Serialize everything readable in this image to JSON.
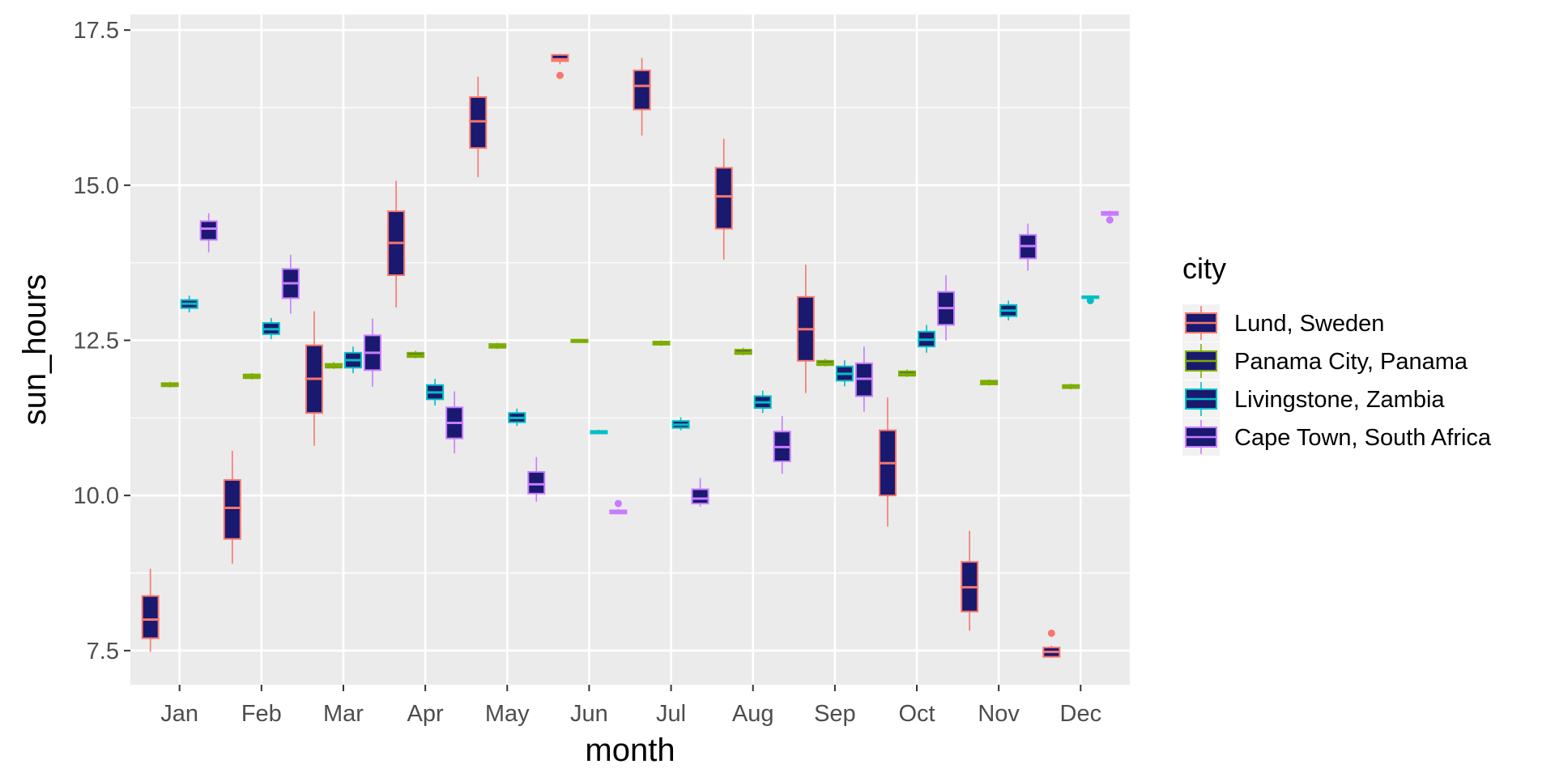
{
  "chart_data": {
    "type": "boxplot",
    "title": "",
    "xlabel": "month",
    "ylabel": "sun_hours",
    "ylim": [
      6.95,
      17.75
    ],
    "yticks": [
      7.5,
      10.0,
      12.5,
      15.0,
      17.5
    ],
    "ytick_labels": [
      "7.5",
      "10.0",
      "12.5",
      "15.0",
      "17.5"
    ],
    "categories": [
      "Jan",
      "Feb",
      "Mar",
      "Apr",
      "May",
      "Jun",
      "Jul",
      "Aug",
      "Sep",
      "Oct",
      "Nov",
      "Dec"
    ],
    "box_fill": "#191970",
    "panel_background": "#EBEBEB",
    "grid_color": "#FFFFFF",
    "legend": {
      "title": "city",
      "position": "right"
    },
    "series": [
      {
        "name": "Lund, Sweden",
        "color": "#F8766D",
        "boxes": [
          {
            "min": 7.48,
            "q1": 7.7,
            "median": 8.0,
            "q3": 8.38,
            "max": 8.82,
            "outliers": []
          },
          {
            "min": 8.9,
            "q1": 9.3,
            "median": 9.8,
            "q3": 10.25,
            "max": 10.72,
            "outliers": []
          },
          {
            "min": 10.8,
            "q1": 11.33,
            "median": 11.88,
            "q3": 12.42,
            "max": 12.97,
            "outliers": []
          },
          {
            "min": 13.03,
            "q1": 13.55,
            "median": 14.07,
            "q3": 14.58,
            "max": 15.07,
            "outliers": []
          },
          {
            "min": 15.13,
            "q1": 15.6,
            "median": 16.03,
            "q3": 16.42,
            "max": 16.75,
            "outliers": []
          },
          {
            "min": 16.95,
            "q1": 17.0,
            "median": 17.03,
            "q3": 17.1,
            "max": 17.12,
            "outliers": [
              16.77
            ]
          },
          {
            "min": 15.8,
            "q1": 16.22,
            "median": 16.6,
            "q3": 16.85,
            "max": 17.05,
            "outliers": []
          },
          {
            "min": 13.8,
            "q1": 14.3,
            "median": 14.82,
            "q3": 15.28,
            "max": 15.75,
            "outliers": []
          },
          {
            "min": 11.65,
            "q1": 12.17,
            "median": 12.68,
            "q3": 13.2,
            "max": 13.72,
            "outliers": []
          },
          {
            "min": 9.5,
            "q1": 10.0,
            "median": 10.52,
            "q3": 11.05,
            "max": 11.58,
            "outliers": []
          },
          {
            "min": 7.82,
            "q1": 8.13,
            "median": 8.52,
            "q3": 8.93,
            "max": 9.43,
            "outliers": []
          },
          {
            "min": 7.38,
            "q1": 7.4,
            "median": 7.48,
            "q3": 7.55,
            "max": 7.58,
            "outliers": [
              7.78
            ]
          }
        ]
      },
      {
        "name": "Panama City, Panama",
        "color": "#7CAE00",
        "boxes": [
          {
            "min": 11.74,
            "q1": 11.76,
            "median": 11.78,
            "q3": 11.81,
            "max": 11.83,
            "outliers": []
          },
          {
            "min": 11.87,
            "q1": 11.89,
            "median": 11.92,
            "q3": 11.95,
            "max": 11.97,
            "outliers": []
          },
          {
            "min": 12.04,
            "q1": 12.06,
            "median": 12.09,
            "q3": 12.12,
            "max": 12.15,
            "outliers": []
          },
          {
            "min": 12.21,
            "q1": 12.23,
            "median": 12.26,
            "q3": 12.3,
            "max": 12.33,
            "outliers": []
          },
          {
            "min": 12.36,
            "q1": 12.38,
            "median": 12.41,
            "q3": 12.44,
            "max": 12.46,
            "outliers": []
          },
          {
            "min": 12.46,
            "q1": 12.47,
            "median": 12.49,
            "q3": 12.51,
            "max": 12.52,
            "outliers": []
          },
          {
            "min": 12.41,
            "q1": 12.43,
            "median": 12.45,
            "q3": 12.48,
            "max": 12.5,
            "outliers": []
          },
          {
            "min": 12.26,
            "q1": 12.28,
            "median": 12.31,
            "q3": 12.35,
            "max": 12.38,
            "outliers": []
          },
          {
            "min": 12.08,
            "q1": 12.1,
            "median": 12.13,
            "q3": 12.17,
            "max": 12.2,
            "outliers": []
          },
          {
            "min": 11.91,
            "q1": 11.93,
            "median": 11.96,
            "q3": 12.0,
            "max": 12.03,
            "outliers": []
          },
          {
            "min": 11.77,
            "q1": 11.79,
            "median": 11.82,
            "q3": 11.85,
            "max": 11.87,
            "outliers": []
          },
          {
            "min": 11.71,
            "q1": 11.73,
            "median": 11.75,
            "q3": 11.78,
            "max": 11.8,
            "outliers": []
          }
        ]
      },
      {
        "name": "Livingstone, Zambia",
        "color": "#00BFC4",
        "boxes": [
          {
            "min": 12.95,
            "q1": 13.02,
            "median": 13.09,
            "q3": 13.15,
            "max": 13.22,
            "outliers": []
          },
          {
            "min": 12.52,
            "q1": 12.6,
            "median": 12.68,
            "q3": 12.78,
            "max": 12.86,
            "outliers": []
          },
          {
            "min": 11.97,
            "q1": 12.06,
            "median": 12.18,
            "q3": 12.3,
            "max": 12.4,
            "outliers": []
          },
          {
            "min": 11.45,
            "q1": 11.55,
            "median": 11.66,
            "q3": 11.78,
            "max": 11.88,
            "outliers": []
          },
          {
            "min": 11.12,
            "q1": 11.18,
            "median": 11.25,
            "q3": 11.33,
            "max": 11.4,
            "outliers": []
          },
          {
            "min": 10.99,
            "q1": 11.0,
            "median": 11.02,
            "q3": 11.04,
            "max": 11.06,
            "outliers": []
          },
          {
            "min": 11.05,
            "q1": 11.09,
            "median": 11.14,
            "q3": 11.2,
            "max": 11.26,
            "outliers": []
          },
          {
            "min": 11.33,
            "q1": 11.41,
            "median": 11.5,
            "q3": 11.6,
            "max": 11.69,
            "outliers": []
          },
          {
            "min": 11.76,
            "q1": 11.85,
            "median": 11.96,
            "q3": 12.08,
            "max": 12.18,
            "outliers": []
          },
          {
            "min": 12.3,
            "q1": 12.4,
            "median": 12.51,
            "q3": 12.64,
            "max": 12.75,
            "outliers": []
          },
          {
            "min": 12.82,
            "q1": 12.89,
            "median": 12.98,
            "q3": 13.07,
            "max": 13.14,
            "outliers": []
          },
          {
            "min": 13.17,
            "q1": 13.18,
            "median": 13.19,
            "q3": 13.21,
            "max": 13.22,
            "outliers": [
              13.14
            ]
          }
        ]
      },
      {
        "name": "Cape Town, South Africa",
        "color": "#C77CFF",
        "boxes": [
          {
            "min": 13.92,
            "q1": 14.12,
            "median": 14.3,
            "q3": 14.42,
            "max": 14.55,
            "outliers": []
          },
          {
            "min": 12.93,
            "q1": 13.18,
            "median": 13.42,
            "q3": 13.65,
            "max": 13.88,
            "outliers": []
          },
          {
            "min": 11.75,
            "q1": 12.02,
            "median": 12.3,
            "q3": 12.58,
            "max": 12.85,
            "outliers": []
          },
          {
            "min": 10.68,
            "q1": 10.92,
            "median": 11.17,
            "q3": 11.42,
            "max": 11.68,
            "outliers": []
          },
          {
            "min": 9.9,
            "q1": 10.03,
            "median": 10.18,
            "q3": 10.38,
            "max": 10.62,
            "outliers": []
          },
          {
            "min": 9.7,
            "q1": 9.71,
            "median": 9.73,
            "q3": 9.76,
            "max": 9.78,
            "outliers": [
              9.87
            ]
          },
          {
            "min": 9.82,
            "q1": 9.87,
            "median": 9.95,
            "q3": 10.1,
            "max": 10.28,
            "outliers": []
          },
          {
            "min": 10.35,
            "q1": 10.55,
            "median": 10.78,
            "q3": 11.03,
            "max": 11.28,
            "outliers": []
          },
          {
            "min": 11.35,
            "q1": 11.6,
            "median": 11.88,
            "q3": 12.13,
            "max": 12.4,
            "outliers": []
          },
          {
            "min": 12.5,
            "q1": 12.75,
            "median": 13.02,
            "q3": 13.28,
            "max": 13.55,
            "outliers": []
          },
          {
            "min": 13.62,
            "q1": 13.82,
            "median": 14.02,
            "q3": 14.2,
            "max": 14.38,
            "outliers": []
          },
          {
            "min": 14.5,
            "q1": 14.52,
            "median": 14.54,
            "q3": 14.57,
            "max": 14.59,
            "outliers": [
              14.44
            ]
          }
        ]
      }
    ]
  }
}
